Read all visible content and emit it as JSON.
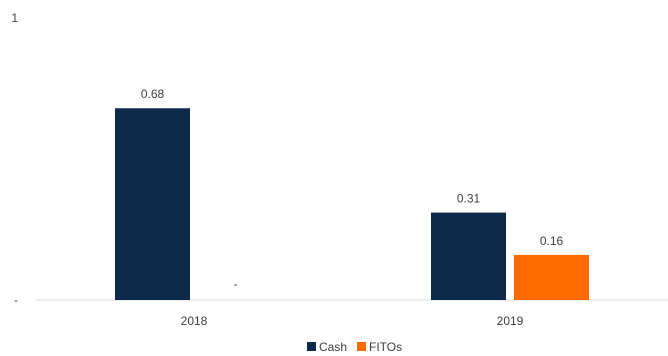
{
  "chart_data": {
    "type": "bar",
    "categories": [
      "2018",
      "2019"
    ],
    "series": [
      {
        "name": "Cash",
        "color": "#0e2a4b",
        "values": [
          0.68,
          0.31
        ],
        "labels": [
          "0.68",
          "0.31"
        ]
      },
      {
        "name": "FITOs",
        "color": "#ff6a00",
        "values": [
          0,
          0.16
        ],
        "labels": [
          "-",
          "0.16"
        ]
      }
    ],
    "ylim": [
      0,
      1
    ],
    "y_ticks": [
      {
        "value": 1,
        "label": "1"
      },
      {
        "value": 0,
        "label": "-"
      }
    ],
    "grid": false,
    "legend": "bottom-center",
    "title": "",
    "xlabel": "",
    "ylabel": ""
  }
}
